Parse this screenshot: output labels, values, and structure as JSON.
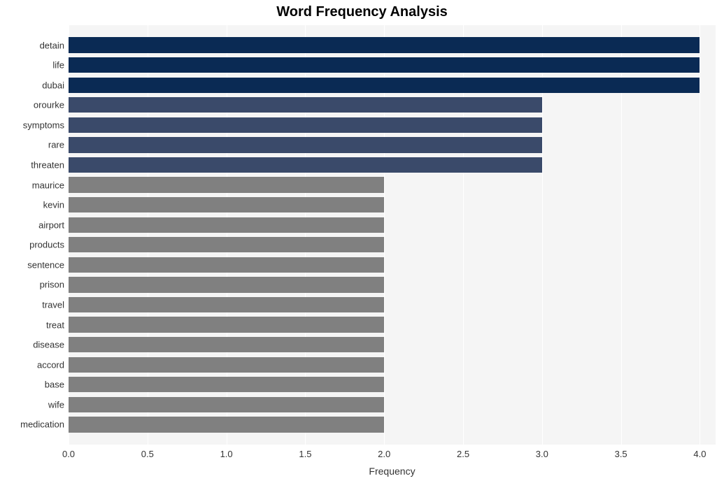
{
  "chart": {
    "type": "bar-horizontal",
    "title": "Word Frequency Analysis",
    "title_fontsize": 20,
    "title_fontweight": "bold",
    "title_color": "#000000",
    "xlabel": "Frequency",
    "label_fontsize": 14,
    "tick_fontsize": 13,
    "background_color": "#ffffff",
    "plot_background_color": "#f5f5f5",
    "grid_color": "#ffffff",
    "xlim": [
      0,
      4.1
    ],
    "xtick_step": 0.5,
    "xtick_decimals": 1,
    "bar_height_ratio": 0.78,
    "top_bottom_pad_ratio": 0.5,
    "categories": [
      "detain",
      "life",
      "dubai",
      "orourke",
      "symptoms",
      "rare",
      "threaten",
      "maurice",
      "kevin",
      "airport",
      "products",
      "sentence",
      "prison",
      "travel",
      "treat",
      "disease",
      "accord",
      "base",
      "wife",
      "medication"
    ],
    "values": [
      4,
      4,
      4,
      3,
      3,
      3,
      3,
      2,
      2,
      2,
      2,
      2,
      2,
      2,
      2,
      2,
      2,
      2,
      2,
      2
    ],
    "bar_colors": [
      "#0a2a54",
      "#0a2a54",
      "#0a2a54",
      "#3a4a6a",
      "#3a4a6a",
      "#3a4a6a",
      "#3a4a6a",
      "#808080",
      "#808080",
      "#808080",
      "#808080",
      "#808080",
      "#808080",
      "#808080",
      "#808080",
      "#808080",
      "#808080",
      "#808080",
      "#808080",
      "#808080"
    ]
  }
}
